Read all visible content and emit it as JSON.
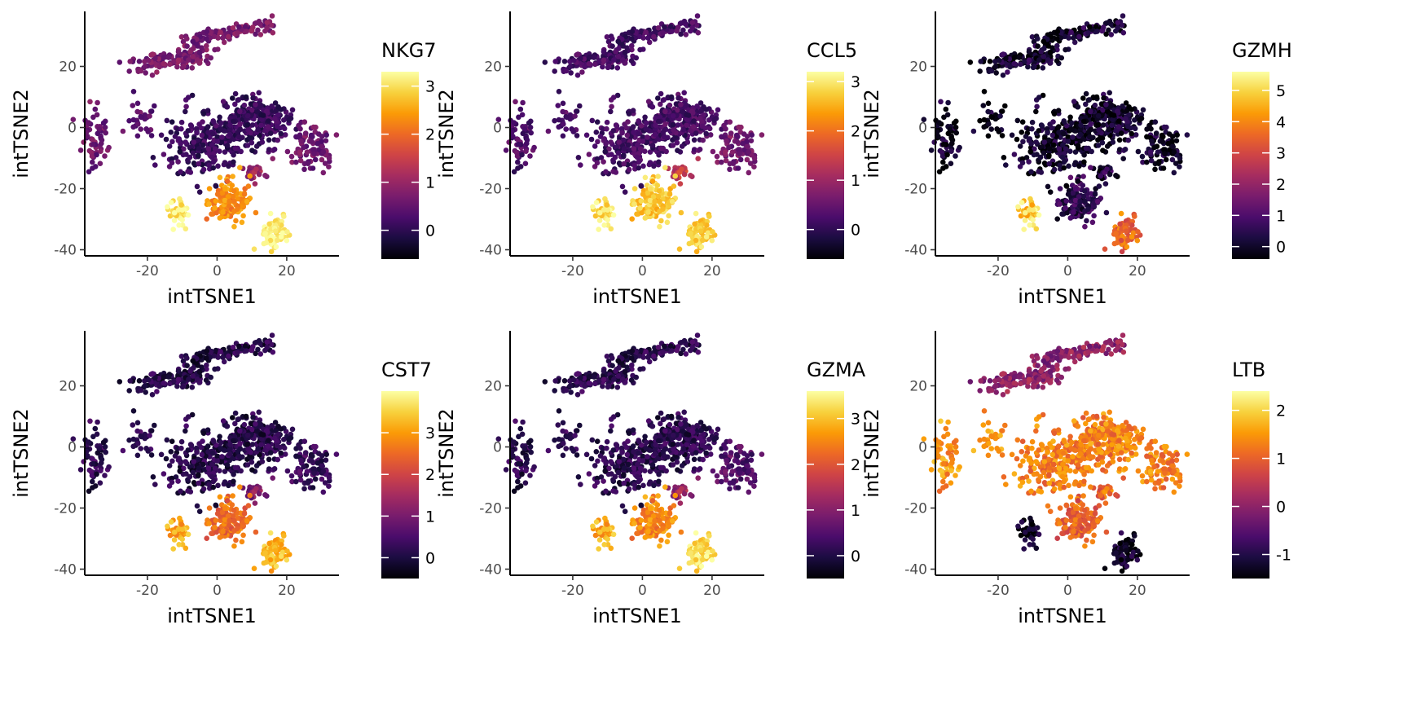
{
  "colors": {
    "background": "#ffffff",
    "axis": "#000000",
    "tick_label": "#4d4d4d",
    "colormap": "inferno",
    "colormap_stops": [
      "#000004",
      "#1b0c41",
      "#4a0c6b",
      "#781c6d",
      "#a52c60",
      "#cf4446",
      "#ed6925",
      "#fb9b06",
      "#f7d13d",
      "#fcffa4"
    ]
  },
  "chart_data": [
    {
      "type": "scatter",
      "title": "NKG7",
      "xlabel": "intTSNE1",
      "ylabel": "intTSNE2",
      "xlim": [
        -38,
        35
      ],
      "ylim": [
        -42,
        38
      ],
      "x_ticks": [
        "-20",
        "0",
        "20"
      ],
      "x_tick_values": [
        -20,
        0,
        20
      ],
      "y_ticks": [
        "-40",
        "-20",
        "0",
        "20"
      ],
      "y_tick_values": [
        -40,
        -20,
        0,
        20
      ],
      "grid": false,
      "legend_position": "right",
      "legend": {
        "title": "NKG7",
        "min": -0.6,
        "max": 3.3,
        "ticks": [
          "0",
          "1",
          "2",
          "3"
        ],
        "tick_values": [
          0,
          1,
          2,
          3
        ]
      },
      "cluster_values": {
        "A": 0.7,
        "B": 0.6,
        "C": 0.5,
        "D": 0.1,
        "E": 0.6,
        "F": 1.0,
        "G": 2.3,
        "H": 3.1,
        "I": 3.2
      },
      "cluster_jitter": 0.35
    },
    {
      "type": "scatter",
      "title": "CCL5",
      "xlabel": "intTSNE1",
      "ylabel": "intTSNE2",
      "xlim": [
        -38,
        35
      ],
      "ylim": [
        -42,
        38
      ],
      "x_ticks": [
        "-20",
        "0",
        "20"
      ],
      "x_tick_values": [
        -20,
        0,
        20
      ],
      "y_ticks": [
        "-40",
        "-20",
        "0",
        "20"
      ],
      "y_tick_values": [
        -40,
        -20,
        0,
        20
      ],
      "grid": false,
      "legend_position": "right",
      "legend": {
        "title": "CCL5",
        "min": -0.6,
        "max": 3.2,
        "ticks": [
          "0",
          "1",
          "2",
          "3"
        ],
        "tick_values": [
          0,
          1,
          2,
          3
        ]
      },
      "cluster_values": {
        "A": 0.2,
        "B": 0.3,
        "C": 0.3,
        "D": 0.2,
        "E": 0.6,
        "F": 1.4,
        "G": 2.7,
        "H": 2.9,
        "I": 2.8
      },
      "cluster_jitter": 0.35
    },
    {
      "type": "scatter",
      "title": "GZMH",
      "xlabel": "intTSNE1",
      "ylabel": "intTSNE2",
      "xlim": [
        -38,
        35
      ],
      "ylim": [
        -42,
        38
      ],
      "x_ticks": [
        "-20",
        "0",
        "20"
      ],
      "x_tick_values": [
        -20,
        0,
        20
      ],
      "y_ticks": [
        "-40",
        "-20",
        "0",
        "20"
      ],
      "y_tick_values": [
        -40,
        -20,
        0,
        20
      ],
      "grid": false,
      "legend_position": "right",
      "legend": {
        "title": "GZMH",
        "min": -0.4,
        "max": 5.6,
        "ticks": [
          "0",
          "1",
          "2",
          "3",
          "4",
          "5"
        ],
        "tick_values": [
          0,
          1,
          2,
          3,
          4,
          5
        ]
      },
      "cluster_values": {
        "A": 0.1,
        "B": 0.0,
        "C": 0.0,
        "D": 0.0,
        "E": 0.0,
        "F": 0.3,
        "G": 0.5,
        "H": 4.9,
        "I": 3.6
      },
      "cluster_jitter": 0.5
    },
    {
      "type": "scatter",
      "title": "CST7",
      "xlabel": "intTSNE1",
      "ylabel": "intTSNE2",
      "xlim": [
        -38,
        35
      ],
      "ylim": [
        -42,
        38
      ],
      "x_ticks": [
        "-20",
        "0",
        "20"
      ],
      "x_tick_values": [
        -20,
        0,
        20
      ],
      "y_ticks": [
        "-40",
        "-20",
        "0",
        "20"
      ],
      "y_tick_values": [
        -40,
        -20,
        0,
        20
      ],
      "grid": false,
      "legend_position": "right",
      "legend": {
        "title": "CST7",
        "min": -0.5,
        "max": 4.0,
        "ticks": [
          "0",
          "1",
          "2",
          "3"
        ],
        "tick_values": [
          0,
          1,
          2,
          3
        ]
      },
      "cluster_values": {
        "A": 0.1,
        "B": 0.2,
        "C": 0.3,
        "D": 0.1,
        "E": 0.3,
        "F": 1.1,
        "G": 2.5,
        "H": 3.1,
        "I": 3.3
      },
      "cluster_jitter": 0.4
    },
    {
      "type": "scatter",
      "title": "GZMA",
      "xlabel": "intTSNE1",
      "ylabel": "intTSNE2",
      "xlim": [
        -38,
        35
      ],
      "ylim": [
        -42,
        38
      ],
      "x_ticks": [
        "-20",
        "0",
        "20"
      ],
      "x_tick_values": [
        -20,
        0,
        20
      ],
      "y_ticks": [
        "-40",
        "-20",
        "0",
        "20"
      ],
      "y_tick_values": [
        -40,
        -20,
        0,
        20
      ],
      "grid": false,
      "legend_position": "right",
      "legend": {
        "title": "GZMA",
        "min": -0.5,
        "max": 3.6,
        "ticks": [
          "0",
          "1",
          "2",
          "3"
        ],
        "tick_values": [
          0,
          1,
          2,
          3
        ]
      },
      "cluster_values": {
        "A": 0.1,
        "B": 0.1,
        "C": 0.2,
        "D": 0.1,
        "E": 0.5,
        "F": 1.2,
        "G": 2.5,
        "H": 2.8,
        "I": 3.3
      },
      "cluster_jitter": 0.4
    },
    {
      "type": "scatter",
      "title": "LTB",
      "xlabel": "intTSNE1",
      "ylabel": "intTSNE2",
      "xlim": [
        -38,
        35
      ],
      "ylim": [
        -42,
        38
      ],
      "x_ticks": [
        "-20",
        "0",
        "20"
      ],
      "x_tick_values": [
        -20,
        0,
        20
      ],
      "y_ticks": [
        "-40",
        "-20",
        "0",
        "20"
      ],
      "y_tick_values": [
        -40,
        -20,
        0,
        20
      ],
      "grid": false,
      "legend_position": "right",
      "legend": {
        "title": "LTB",
        "min": -1.5,
        "max": 2.4,
        "ticks": [
          "-1",
          "0",
          "1",
          "2"
        ],
        "tick_values": [
          -1,
          0,
          1,
          2
        ]
      },
      "cluster_values": {
        "A": 0.0,
        "B": 1.5,
        "C": 1.6,
        "D": 1.3,
        "E": 1.3,
        "F": 1.1,
        "G": 1.0,
        "H": -1.3,
        "I": -1.2
      },
      "cluster_jitter": 0.45
    }
  ]
}
